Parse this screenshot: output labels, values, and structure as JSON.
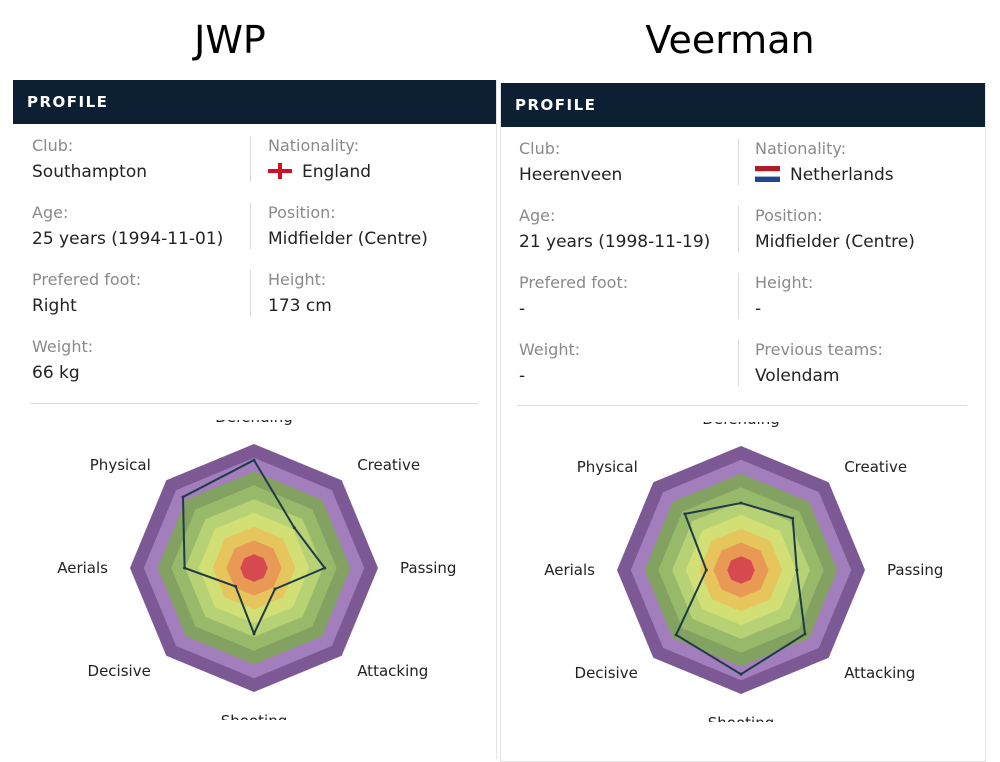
{
  "left": {
    "player_name": "JWP",
    "header": "PROFILE",
    "fields": {
      "club_label": "Club:",
      "club": "Southampton",
      "nationality_label": "Nationality:",
      "nationality": "England",
      "age_label": "Age:",
      "age": "25 years (1994-11-01)",
      "position_label": "Position:",
      "position": "Midfielder (Centre)",
      "foot_label": "Prefered foot:",
      "foot": "Right",
      "height_label": "Height:",
      "height": "173 cm",
      "weight_label": "Weight:",
      "weight": "66 kg"
    }
  },
  "right": {
    "player_name": "Veerman",
    "header": "PROFILE",
    "fields": {
      "club_label": "Club:",
      "club": "Heerenveen",
      "nationality_label": "Nationality:",
      "nationality": "Netherlands",
      "age_label": "Age:",
      "age": "21 years (1998-11-19)",
      "position_label": "Position:",
      "position": "Midfielder (Centre)",
      "foot_label": "Prefered foot:",
      "foot": "-",
      "height_label": "Height:",
      "height": "-",
      "weight_label": "Weight:",
      "weight": "-",
      "prev_label": "Previous teams:",
      "prev": "Volendam"
    }
  },
  "colors": {
    "header_bg": "#0d1f33",
    "rings": [
      "#7c5894",
      "#a27fbc",
      "#83a160",
      "#98b96a",
      "#b7d274",
      "#d2df74",
      "#e6c65c",
      "#e89a55",
      "#d5494f"
    ],
    "line": "#1f3a48",
    "england_red": "#ce1124",
    "nl_red": "#ae1c28",
    "nl_blue": "#21468b"
  },
  "chart_data": [
    {
      "type": "radar",
      "title": "JWP",
      "axes": [
        "Defending",
        "Creative",
        "Passing",
        "Attacking",
        "Shooting",
        "Decisive",
        "Aerials",
        "Physical"
      ],
      "values": [
        8.7,
        4.6,
        5.7,
        2.4,
        5.3,
        2.1,
        5.6,
        8.1
      ],
      "range": [
        0,
        10
      ]
    },
    {
      "type": "radar",
      "title": "Veerman",
      "axes": [
        "Defending",
        "Creative",
        "Passing",
        "Attacking",
        "Shooting",
        "Decisive",
        "Aerials",
        "Physical"
      ],
      "values": [
        5.4,
        5.9,
        4.5,
        7.3,
        8.4,
        7.4,
        2.8,
        6.4
      ],
      "range": [
        0,
        10
      ]
    }
  ]
}
